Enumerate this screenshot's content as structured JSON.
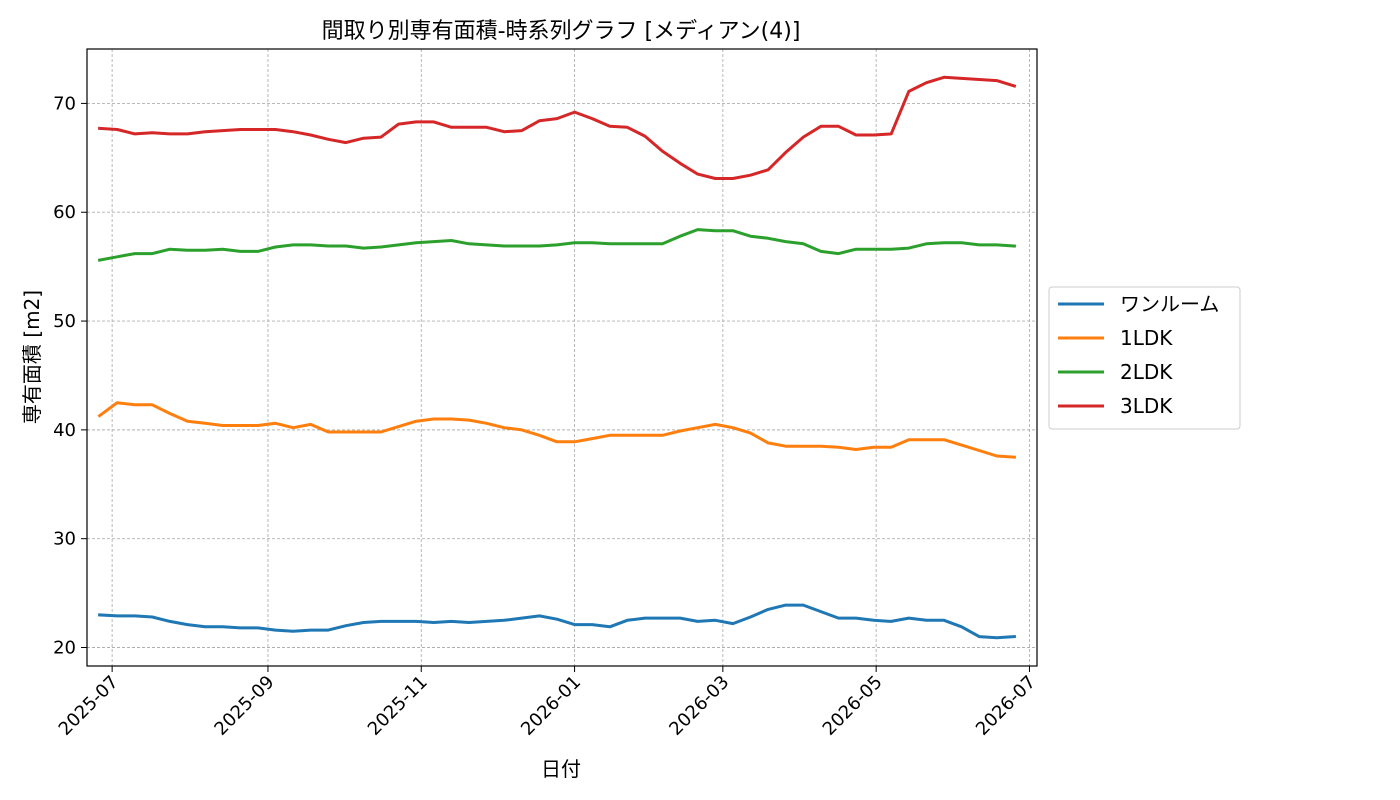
{
  "chart_data": {
    "type": "line",
    "title": "間取り別専有面積-時系列グラフ [メディアン(4)]",
    "xlabel": "日付",
    "ylabel": "専有面積 [m2]",
    "xlim": [
      "2025-06-21",
      "2026-07-04"
    ],
    "ylim": [
      18.3,
      75.0
    ],
    "x_ticks": [
      "2025-07",
      "2025-09",
      "2025-11",
      "2026-01",
      "2026-03",
      "2026-05",
      "2026-07"
    ],
    "y_ticks": [
      20,
      30,
      40,
      50,
      60,
      70
    ],
    "grid": true,
    "legend_position": "center-right-outside",
    "x": [
      "2025-06-26",
      "2025-07-03",
      "2025-07-10",
      "2025-07-17",
      "2025-07-24",
      "2025-07-31",
      "2025-08-07",
      "2025-08-14",
      "2025-08-21",
      "2025-08-28",
      "2025-09-04",
      "2025-09-11",
      "2025-09-18",
      "2025-09-25",
      "2025-10-02",
      "2025-10-09",
      "2025-10-16",
      "2025-10-23",
      "2025-10-30",
      "2025-11-06",
      "2025-11-13",
      "2025-11-20",
      "2025-11-27",
      "2025-12-04",
      "2025-12-11",
      "2025-12-18",
      "2025-12-25",
      "2026-01-01",
      "2026-01-08",
      "2026-01-15",
      "2026-01-22",
      "2026-01-29",
      "2026-02-05",
      "2026-02-12",
      "2026-02-19",
      "2026-02-26",
      "2026-03-05",
      "2026-03-12",
      "2026-03-19",
      "2026-03-26",
      "2026-04-02",
      "2026-04-09",
      "2026-04-16",
      "2026-04-23",
      "2026-04-30",
      "2026-05-07",
      "2026-05-14",
      "2026-05-21",
      "2026-05-28",
      "2026-06-04",
      "2026-06-11",
      "2026-06-18",
      "2026-06-25"
    ],
    "series": [
      {
        "name": "ワンルーム",
        "color": "#1f77b4",
        "values": [
          23.0,
          22.9,
          22.9,
          22.8,
          22.4,
          22.1,
          21.9,
          21.9,
          21.8,
          21.8,
          21.6,
          21.5,
          21.6,
          21.6,
          22.0,
          22.3,
          22.4,
          22.4,
          22.4,
          22.3,
          22.4,
          22.3,
          22.4,
          22.5,
          22.7,
          22.9,
          22.6,
          22.1,
          22.1,
          21.9,
          22.5,
          22.7,
          22.7,
          22.7,
          22.4,
          22.5,
          22.2,
          22.8,
          23.5,
          23.9,
          23.9,
          23.3,
          22.7,
          22.7,
          22.5,
          22.4,
          22.7,
          22.5,
          22.5,
          21.9,
          21.0,
          20.9,
          21.0
        ]
      },
      {
        "name": "1LDK",
        "color": "#ff7f0e",
        "values": [
          41.3,
          42.5,
          42.3,
          42.3,
          41.5,
          40.8,
          40.6,
          40.4,
          40.4,
          40.4,
          40.6,
          40.2,
          40.5,
          39.8,
          39.8,
          39.8,
          39.8,
          40.3,
          40.8,
          41.0,
          41.0,
          40.9,
          40.6,
          40.2,
          40.0,
          39.5,
          38.9,
          38.9,
          39.2,
          39.5,
          39.5,
          39.5,
          39.5,
          39.9,
          40.2,
          40.5,
          40.2,
          39.7,
          38.8,
          38.5,
          38.5,
          38.5,
          38.4,
          38.2,
          38.4,
          38.4,
          39.1,
          39.1,
          39.1,
          38.6,
          38.1,
          37.6,
          37.5
        ]
      },
      {
        "name": "2LDK",
        "color": "#2ca02c",
        "values": [
          55.6,
          55.9,
          56.2,
          56.2,
          56.6,
          56.5,
          56.5,
          56.6,
          56.4,
          56.4,
          56.8,
          57.0,
          57.0,
          56.9,
          56.9,
          56.7,
          56.8,
          57.0,
          57.2,
          57.3,
          57.4,
          57.1,
          57.0,
          56.9,
          56.9,
          56.9,
          57.0,
          57.2,
          57.2,
          57.1,
          57.1,
          57.1,
          57.1,
          57.8,
          58.4,
          58.3,
          58.3,
          57.8,
          57.6,
          57.3,
          57.1,
          56.4,
          56.2,
          56.6,
          56.6,
          56.6,
          56.7,
          57.1,
          57.2,
          57.2,
          57.0,
          57.0,
          56.9
        ]
      },
      {
        "name": "3LDK",
        "color": "#d62728",
        "values": [
          67.7,
          67.6,
          67.2,
          67.3,
          67.2,
          67.2,
          67.4,
          67.5,
          67.6,
          67.6,
          67.6,
          67.4,
          67.1,
          66.7,
          66.4,
          66.8,
          66.9,
          68.1,
          68.3,
          68.3,
          67.8,
          67.8,
          67.8,
          67.4,
          67.5,
          68.4,
          68.6,
          69.2,
          68.6,
          67.9,
          67.8,
          67.0,
          65.6,
          64.5,
          63.5,
          63.1,
          63.1,
          63.4,
          63.9,
          65.5,
          66.9,
          67.9,
          67.9,
          67.1,
          67.1,
          67.2,
          71.1,
          71.9,
          72.4,
          72.3,
          72.2,
          72.1,
          71.6
        ]
      }
    ]
  }
}
